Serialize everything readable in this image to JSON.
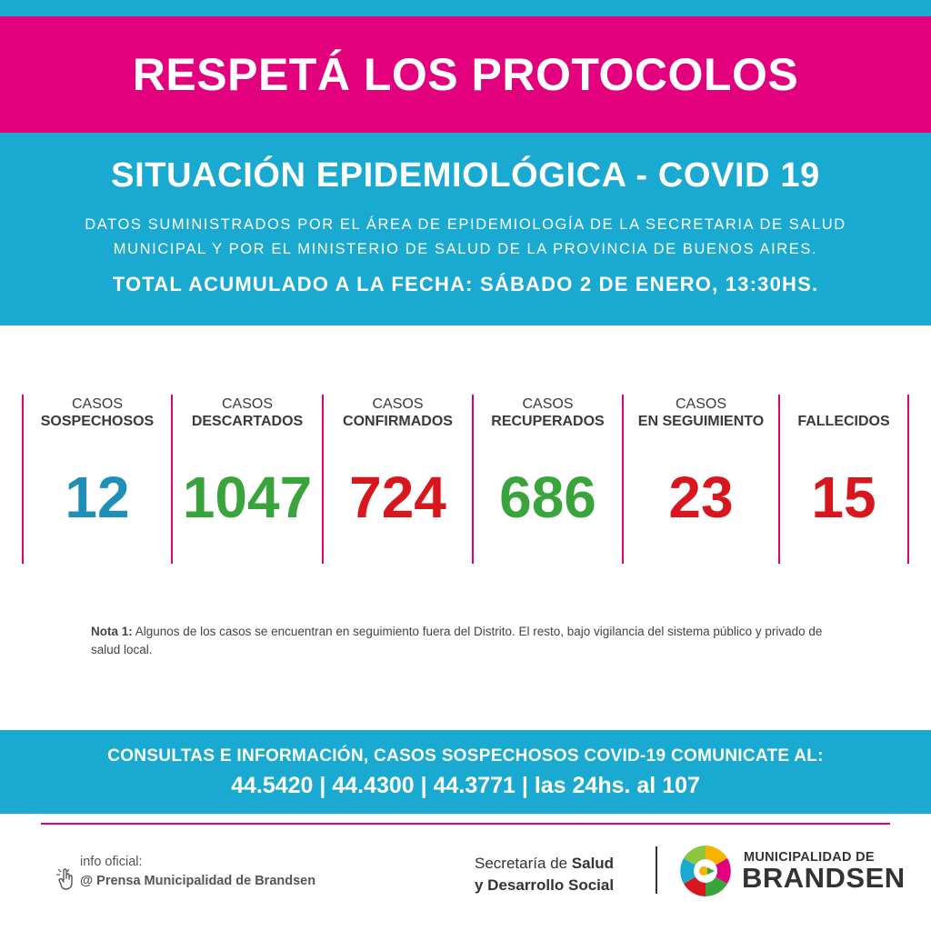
{
  "banner": {
    "title": "RESPETÁ LOS PROTOCOLOS"
  },
  "info": {
    "title": "SITUACIÓN EPIDEMIOLÓGICA - COVID 19",
    "subtitle_line1": "DATOS SUMINISTRADOS POR EL ÁREA DE EPIDEMIOLOGÍA DE LA SECRETARIA DE SALUD",
    "subtitle_line2": "MUNICIPAL Y POR EL MINISTERIO DE SALUD DE LA PROVINCIA DE BUENOS AIRES.",
    "date": "TOTAL ACUMULADO A LA FECHA: SÁBADO 2 DE ENERO, 13:30HS."
  },
  "stats": [
    {
      "label1": "CASOS",
      "label2": "SOSPECHOSOS",
      "value": "12",
      "color": "#1f8fb9"
    },
    {
      "label1": "CASOS",
      "label2": "DESCARTADOS",
      "value": "1047",
      "color": "#3aa43c"
    },
    {
      "label1": "CASOS",
      "label2": "CONFIRMADOS",
      "value": "724",
      "color": "#d8161e"
    },
    {
      "label1": "CASOS",
      "label2": "RECUPERADOS",
      "value": "686",
      "color": "#3aa43c"
    },
    {
      "label1": "CASOS",
      "label2": "EN SEGUIMIENTO",
      "value": "23",
      "color": "#d8161e"
    },
    {
      "label1": "",
      "label2": "FALLECIDOS",
      "value": "15",
      "color": "#d8161e"
    }
  ],
  "note": {
    "label": "Nota 1:",
    "text": " Algunos de los casos se encuentran en seguimiento fuera del Distrito. El resto, bajo vigilancia del sistema público y privado de salud local."
  },
  "contact": {
    "line1": "CONSULTAS E INFORMACIÓN, CASOS SOSPECHOSOS COVID-19 COMUNICATE AL:",
    "line2": "44.5420 | 44.4300 | 44.3771 | las 24hs. al 107"
  },
  "footer": {
    "info_label": "info oficial:",
    "info_handle": "@ Prensa Municipalidad de Brandsen",
    "secretaria_prefix1": "Secretaría de ",
    "secretaria_bold1": "Salud",
    "secretaria_line2": "y Desarrollo Social",
    "muni_line1": "MUNICIPALIDAD DE",
    "muni_line2": "BRANDSEN"
  },
  "colors": {
    "magenta": "#e3007d",
    "cyan": "#1aa9d0"
  },
  "icons": {
    "hand": "pointer-hand-icon",
    "logo": "municipal-logo-icon"
  }
}
